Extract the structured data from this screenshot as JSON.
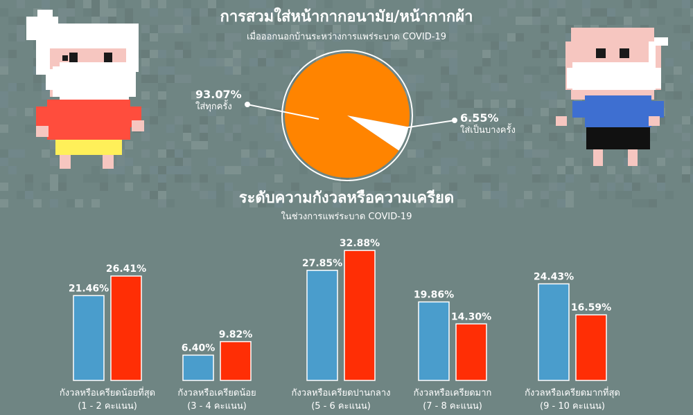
{
  "header": {
    "title": "การสวมใส่หน้ากากอนามัย/หน้ากากผ้า",
    "subtitle": "เมื่อออกนอกบ้านระหว่างการแพร่ระบาด COVID-19"
  },
  "section2": {
    "title": "ระดับความกังวลหรือความเครียด",
    "subtitle": "ในช่วงการแพร่ระบาด COVID-19"
  },
  "colors": {
    "background": "#6f8583",
    "pie_main": "#ff8400",
    "bar_blue": "#4a9dcc",
    "bar_red": "#ff2e05",
    "text": "#ffffff"
  },
  "chart_data": [
    {
      "type": "pie",
      "slices": [
        {
          "label": "ใส่ทุกครั้ง",
          "value": 93.07,
          "value_label": "93.07%"
        },
        {
          "label": "ใส่เป็นบางครั้ง",
          "value": 6.55,
          "value_label": "6.55%"
        }
      ]
    },
    {
      "type": "bar",
      "categories": [
        {
          "label": "กังวลหรือเครียดน้อยที่สุด",
          "sublabel": "(1 - 2 คะแนน)"
        },
        {
          "label": "กังวลหรือเครียดน้อย",
          "sublabel": "(3 - 4 คะแนน)"
        },
        {
          "label": "กังวลหรือเครียดปานกลาง",
          "sublabel": "(5 - 6 คะแนน)"
        },
        {
          "label": "กังวลหรือเครียดมาก",
          "sublabel": "(7 - 8 คะแนน)"
        },
        {
          "label": "กังวลหรือเครียดมากที่สุด",
          "sublabel": "(9 - 10 คะแนน)"
        }
      ],
      "series": [
        {
          "color": "#4a9dcc",
          "values": [
            21.46,
            6.4,
            27.85,
            19.86,
            24.43
          ],
          "value_labels": [
            "21.46%",
            "6.40%",
            "27.85%",
            "19.86%",
            "24.43%"
          ]
        },
        {
          "color": "#ff2e05",
          "values": [
            26.41,
            9.82,
            32.88,
            14.3,
            16.59
          ],
          "value_labels": [
            "26.41%",
            "9.82%",
            "32.88%",
            "14.30%",
            "16.59%"
          ]
        }
      ],
      "ylim": [
        0,
        35
      ]
    }
  ]
}
